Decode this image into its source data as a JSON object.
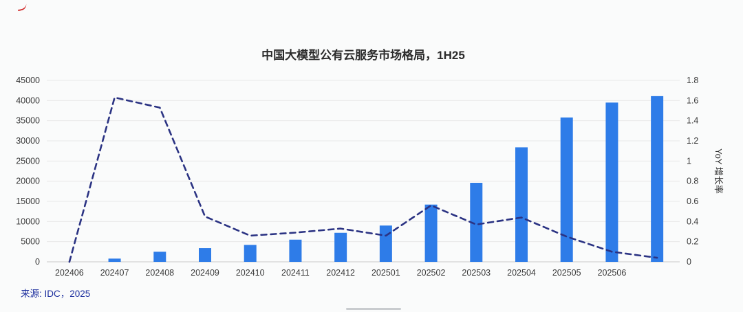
{
  "page": {
    "background": "#fafbfb"
  },
  "chart_data": {
    "type": "bar+line",
    "title": "中国大模型公有云服务市场格局，1H25",
    "categories": [
      "202406",
      "202407",
      "202408",
      "202409",
      "202410",
      "202411",
      "202412",
      "202501",
      "202502",
      "202503",
      "202504",
      "202505",
      "202506",
      ""
    ],
    "series": [
      {
        "type": "bar",
        "axis": "left",
        "color": "#2e7ce8",
        "values": [
          0,
          800,
          2500,
          3400,
          4200,
          5500,
          7200,
          9000,
          14200,
          19600,
          28400,
          35800,
          39500,
          41100
        ]
      },
      {
        "name": "YoY 增长率",
        "type": "line",
        "axis": "right",
        "color": "#2b3383",
        "dashed": true,
        "values": [
          0,
          1.63,
          1.53,
          0.45,
          0.26,
          0.29,
          0.33,
          0.26,
          0.56,
          0.37,
          0.44,
          0.25,
          0.1,
          0.04
        ]
      }
    ],
    "left_axis": {
      "min": 0,
      "max": 45000,
      "step": 5000,
      "ticks": [
        "0",
        "5000",
        "10000",
        "15000",
        "20000",
        "25000",
        "30000",
        "35000",
        "40000",
        "45000"
      ]
    },
    "right_axis": {
      "min": 0,
      "max": 1.8,
      "step": 0.2,
      "label": "YoY 增长率",
      "ticks": [
        "0",
        "0.2",
        "0.4",
        "0.6",
        "0.8",
        "1",
        "1.2",
        "1.4",
        "1.6",
        "1.8"
      ]
    },
    "grid": true,
    "legend": "none",
    "grid_color": "#e8e8e8",
    "axis_line_color": "#c9c9c9",
    "tick_color": "#3a3a3a"
  },
  "footer": {
    "source": "来源: IDC，2025"
  }
}
